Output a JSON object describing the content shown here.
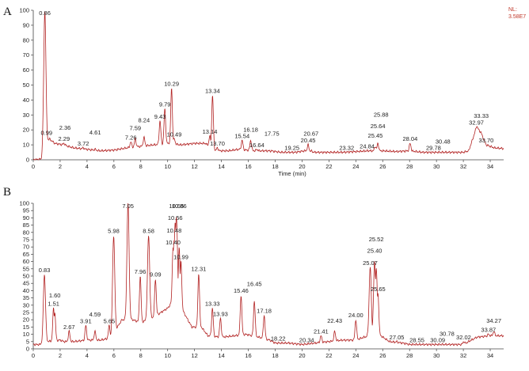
{
  "colors": {
    "trace": "#b22222",
    "axis": "#444444",
    "text": "#222222",
    "nl": "#c0392b",
    "annotation_line": "#3a9a3a"
  },
  "chart_data": [
    {
      "panel_label": "A",
      "type": "line",
      "xlabel": "Time (min)",
      "ylabel": "",
      "xlim": [
        0,
        35
      ],
      "ylim": [
        0,
        100
      ],
      "xticks": [
        0,
        2,
        4,
        6,
        8,
        10,
        12,
        14,
        16,
        18,
        20,
        22,
        24,
        26,
        28,
        30,
        32,
        34
      ],
      "yticks": [
        0,
        10,
        20,
        30,
        40,
        50,
        60,
        70,
        80,
        90,
        100
      ],
      "nl_label": "NL:",
      "nl_value": "3.58E7",
      "baseline": [
        [
          0,
          0
        ],
        [
          0.6,
          0.5
        ],
        [
          0.72,
          8
        ],
        [
          1.2,
          14
        ],
        [
          1.6,
          11
        ],
        [
          2.2,
          10
        ],
        [
          3,
          8
        ],
        [
          4,
          7
        ],
        [
          5,
          6
        ],
        [
          6,
          6.5
        ],
        [
          7,
          8
        ],
        [
          8,
          9
        ],
        [
          9,
          10
        ],
        [
          10,
          11
        ],
        [
          11,
          10
        ],
        [
          12,
          11
        ],
        [
          12.8,
          11
        ],
        [
          13.6,
          6
        ],
        [
          14.5,
          6
        ],
        [
          15.3,
          7
        ],
        [
          16.5,
          6
        ],
        [
          17.5,
          6
        ],
        [
          18.5,
          5
        ],
        [
          19.5,
          5
        ],
        [
          20.2,
          6
        ],
        [
          21,
          5
        ],
        [
          22,
          5
        ],
        [
          23,
          5
        ],
        [
          24,
          5.5
        ],
        [
          25,
          6
        ],
        [
          26,
          6
        ],
        [
          27,
          5.5
        ],
        [
          28,
          6
        ],
        [
          29,
          5
        ],
        [
          30,
          5
        ],
        [
          31,
          5
        ],
        [
          32,
          5
        ],
        [
          32.4,
          6
        ],
        [
          33,
          22
        ],
        [
          33.3,
          18
        ],
        [
          33.7,
          10
        ],
        [
          34.3,
          8
        ],
        [
          35,
          7.5
        ]
      ],
      "peaks": [
        {
          "label": "0.86",
          "x": 0.86,
          "y": 100
        },
        {
          "label": "0.99",
          "x": 0.99,
          "y": 15
        },
        {
          "label": "2.29",
          "x": 2.29,
          "y": 11
        },
        {
          "label": "2.36",
          "x": 2.36,
          "y": 10
        },
        {
          "label": "3.72",
          "x": 3.72,
          "y": 8
        },
        {
          "label": "4.61",
          "x": 4.61,
          "y": 7
        },
        {
          "label": "7.26",
          "x": 7.26,
          "y": 12
        },
        {
          "label": "7.59",
          "x": 7.59,
          "y": 14
        },
        {
          "label": "8.24",
          "x": 8.24,
          "y": 15
        },
        {
          "label": "9.43",
          "x": 9.43,
          "y": 26
        },
        {
          "label": "9.79",
          "x": 9.79,
          "y": 34
        },
        {
          "label": "10.29",
          "x": 10.29,
          "y": 48
        },
        {
          "label": "10.49",
          "x": 10.49,
          "y": 14
        },
        {
          "label": "13.14",
          "x": 13.14,
          "y": 16
        },
        {
          "label": "13.34",
          "x": 13.34,
          "y": 43
        },
        {
          "label": "13.70",
          "x": 13.7,
          "y": 8
        },
        {
          "label": "15.54",
          "x": 15.54,
          "y": 13
        },
        {
          "label": "16.18",
          "x": 16.18,
          "y": 13
        },
        {
          "label": "16.64",
          "x": 16.64,
          "y": 7
        },
        {
          "label": "17.75",
          "x": 17.75,
          "y": 6
        },
        {
          "label": "19.25",
          "x": 19.25,
          "y": 5
        },
        {
          "label": "20.45",
          "x": 20.45,
          "y": 10
        },
        {
          "label": "20.67",
          "x": 20.67,
          "y": 6
        },
        {
          "label": "23.32",
          "x": 23.32,
          "y": 5
        },
        {
          "label": "24.84",
          "x": 24.84,
          "y": 6
        },
        {
          "label": "25.45",
          "x": 25.45,
          "y": 9
        },
        {
          "label": "25.64",
          "x": 25.64,
          "y": 11
        },
        {
          "label": "25.88",
          "x": 25.88,
          "y": 6
        },
        {
          "label": "28.04",
          "x": 28.04,
          "y": 11
        },
        {
          "label": "29.78",
          "x": 29.78,
          "y": 5
        },
        {
          "label": "30.48",
          "x": 30.48,
          "y": 5
        },
        {
          "label": "32.97",
          "x": 32.97,
          "y": 22
        },
        {
          "label": "33.33",
          "x": 33.33,
          "y": 18
        },
        {
          "label": "33.70",
          "x": 33.7,
          "y": 10
        }
      ]
    },
    {
      "panel_label": "B",
      "type": "line",
      "xlabel": "",
      "ylabel": "",
      "xlim": [
        0,
        35
      ],
      "ylim": [
        0,
        100
      ],
      "xticks": [
        0,
        2,
        4,
        6,
        8,
        10,
        12,
        14,
        16,
        18,
        20,
        22,
        24,
        26,
        28,
        30,
        32,
        34
      ],
      "yticks": [
        0,
        5,
        10,
        15,
        20,
        25,
        30,
        35,
        40,
        45,
        50,
        55,
        60,
        65,
        70,
        75,
        80,
        85,
        90,
        95,
        100
      ],
      "baseline": [
        [
          0,
          3
        ],
        [
          0.5,
          3
        ],
        [
          1,
          5
        ],
        [
          2,
          6
        ],
        [
          2.3,
          5
        ],
        [
          3,
          5
        ],
        [
          4,
          6
        ],
        [
          4.5,
          6
        ],
        [
          5,
          6
        ],
        [
          5.5,
          7
        ],
        [
          5.8,
          8
        ],
        [
          6.6,
          20
        ],
        [
          7.4,
          20
        ],
        [
          8,
          18
        ],
        [
          9,
          22
        ],
        [
          10,
          28
        ],
        [
          10.6,
          35
        ],
        [
          11.2,
          25
        ],
        [
          11.8,
          15
        ],
        [
          12.5,
          15
        ],
        [
          13,
          9
        ],
        [
          14,
          8
        ],
        [
          15,
          9
        ],
        [
          15.8,
          10
        ],
        [
          16.8,
          8
        ],
        [
          17.6,
          6
        ],
        [
          18,
          4
        ],
        [
          19,
          4
        ],
        [
          20,
          3
        ],
        [
          21,
          4
        ],
        [
          22,
          5
        ],
        [
          23,
          6
        ],
        [
          24,
          6
        ],
        [
          24.6,
          8
        ],
        [
          25.7,
          10
        ],
        [
          26.5,
          5
        ],
        [
          27.5,
          4
        ],
        [
          28,
          3
        ],
        [
          29,
          3
        ],
        [
          30,
          3
        ],
        [
          31,
          3
        ],
        [
          32,
          3
        ],
        [
          33,
          8
        ],
        [
          34,
          9
        ],
        [
          35,
          9
        ]
      ],
      "peaks": [
        {
          "label": "0.83",
          "x": 0.83,
          "y": 51
        },
        {
          "label": "1.51",
          "x": 1.51,
          "y": 28
        },
        {
          "label": "1.60",
          "x": 1.6,
          "y": 25
        },
        {
          "label": "2.67",
          "x": 2.67,
          "y": 12
        },
        {
          "label": "3.91",
          "x": 3.91,
          "y": 16
        },
        {
          "label": "4.59",
          "x": 4.59,
          "y": 12
        },
        {
          "label": "5.65",
          "x": 5.65,
          "y": 16
        },
        {
          "label": "5.98",
          "x": 5.98,
          "y": 78
        },
        {
          "label": "7.05",
          "x": 7.05,
          "y": 100
        },
        {
          "label": "7.96",
          "x": 7.96,
          "y": 50
        },
        {
          "label": "8.58",
          "x": 8.58,
          "y": 78
        },
        {
          "label": "9.09",
          "x": 9.09,
          "y": 48
        },
        {
          "label": "10.40",
          "x": 10.4,
          "y": 70
        },
        {
          "label": "10.48",
          "x": 10.48,
          "y": 74
        },
        {
          "label": "10.56",
          "x": 10.56,
          "y": 87
        },
        {
          "label": "10.65",
          "x": 10.65,
          "y": 91
        },
        {
          "label": "10.86",
          "x": 10.86,
          "y": 70
        },
        {
          "label": "10.99",
          "x": 10.99,
          "y": 60
        },
        {
          "label": "12.31",
          "x": 12.31,
          "y": 52
        },
        {
          "label": "13.33",
          "x": 13.33,
          "y": 28
        },
        {
          "label": "13.93",
          "x": 13.93,
          "y": 21
        },
        {
          "label": "15.46",
          "x": 15.46,
          "y": 37
        },
        {
          "label": "16.45",
          "x": 16.45,
          "y": 33
        },
        {
          "label": "17.18",
          "x": 17.18,
          "y": 23
        },
        {
          "label": "18.22",
          "x": 18.22,
          "y": 4
        },
        {
          "label": "20.34",
          "x": 20.34,
          "y": 3
        },
        {
          "label": "21.41",
          "x": 21.41,
          "y": 9
        },
        {
          "label": "22.43",
          "x": 22.43,
          "y": 12
        },
        {
          "label": "24.00",
          "x": 24.0,
          "y": 20
        },
        {
          "label": "25.07",
          "x": 25.07,
          "y": 56
        },
        {
          "label": "25.40",
          "x": 25.4,
          "y": 60
        },
        {
          "label": "25.52",
          "x": 25.52,
          "y": 55
        },
        {
          "label": "25.65",
          "x": 25.65,
          "y": 38
        },
        {
          "label": "27.05",
          "x": 27.05,
          "y": 5
        },
        {
          "label": "28.55",
          "x": 28.55,
          "y": 3
        },
        {
          "label": "30.09",
          "x": 30.09,
          "y": 3
        },
        {
          "label": "30.78",
          "x": 30.78,
          "y": 3
        },
        {
          "label": "32.02",
          "x": 32.02,
          "y": 5
        },
        {
          "label": "33.87",
          "x": 33.87,
          "y": 10
        },
        {
          "label": "34.27",
          "x": 34.27,
          "y": 12
        }
      ]
    }
  ]
}
